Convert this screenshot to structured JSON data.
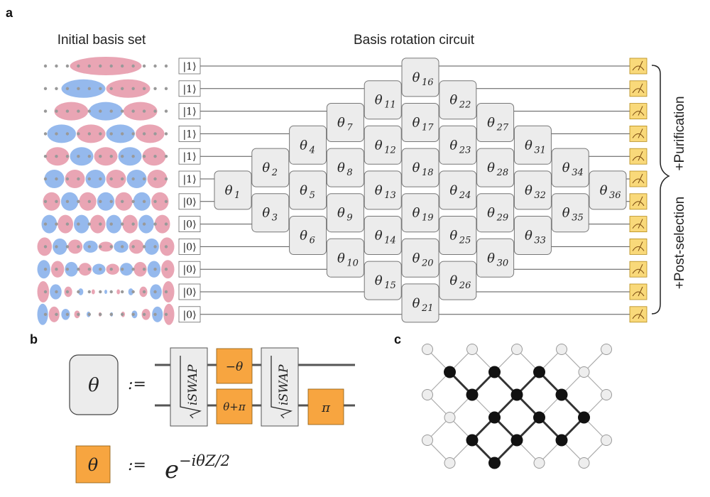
{
  "panel_labels": {
    "a": "a",
    "b": "b",
    "c": "c"
  },
  "panel_a": {
    "left_title": "Initial basis set",
    "right_title": "Basis rotation circuit",
    "initial_states": [
      "|1⟩",
      "|1⟩",
      "|1⟩",
      "|1⟩",
      "|1⟩",
      "|1⟩",
      "|0⟩",
      "|0⟩",
      "|0⟩",
      "|0⟩",
      "|0⟩",
      "|0⟩"
    ],
    "gates": [
      {
        "sym": "θ",
        "sub": "1",
        "col": 0,
        "pair": 5
      },
      {
        "sym": "θ",
        "sub": "2",
        "col": 1,
        "pair": 4
      },
      {
        "sym": "θ",
        "sub": "3",
        "col": 1,
        "pair": 6
      },
      {
        "sym": "θ",
        "sub": "4",
        "col": 2,
        "pair": 3
      },
      {
        "sym": "θ",
        "sub": "5",
        "col": 2,
        "pair": 5
      },
      {
        "sym": "θ",
        "sub": "6",
        "col": 2,
        "pair": 7
      },
      {
        "sym": "θ",
        "sub": "7",
        "col": 3,
        "pair": 2
      },
      {
        "sym": "θ",
        "sub": "8",
        "col": 3,
        "pair": 4
      },
      {
        "sym": "θ",
        "sub": "9",
        "col": 3,
        "pair": 6
      },
      {
        "sym": "θ",
        "sub": "10",
        "col": 3,
        "pair": 8
      },
      {
        "sym": "θ",
        "sub": "11",
        "col": 4,
        "pair": 1
      },
      {
        "sym": "θ",
        "sub": "12",
        "col": 4,
        "pair": 3
      },
      {
        "sym": "θ",
        "sub": "13",
        "col": 4,
        "pair": 5
      },
      {
        "sym": "θ",
        "sub": "14",
        "col": 4,
        "pair": 7
      },
      {
        "sym": "θ",
        "sub": "15",
        "col": 4,
        "pair": 9
      },
      {
        "sym": "θ",
        "sub": "16",
        "col": 5,
        "pair": 0
      },
      {
        "sym": "θ",
        "sub": "17",
        "col": 5,
        "pair": 2
      },
      {
        "sym": "θ",
        "sub": "18",
        "col": 5,
        "pair": 4
      },
      {
        "sym": "θ",
        "sub": "19",
        "col": 5,
        "pair": 6
      },
      {
        "sym": "θ",
        "sub": "20",
        "col": 5,
        "pair": 8
      },
      {
        "sym": "θ",
        "sub": "21",
        "col": 5,
        "pair": 10
      },
      {
        "sym": "θ",
        "sub": "22",
        "col": 6,
        "pair": 1
      },
      {
        "sym": "θ",
        "sub": "23",
        "col": 6,
        "pair": 3
      },
      {
        "sym": "θ",
        "sub": "24",
        "col": 6,
        "pair": 5
      },
      {
        "sym": "θ",
        "sub": "25",
        "col": 6,
        "pair": 7
      },
      {
        "sym": "θ",
        "sub": "26",
        "col": 6,
        "pair": 9
      },
      {
        "sym": "θ",
        "sub": "27",
        "col": 7,
        "pair": 2
      },
      {
        "sym": "θ",
        "sub": "28",
        "col": 7,
        "pair": 4
      },
      {
        "sym": "θ",
        "sub": "29",
        "col": 7,
        "pair": 6
      },
      {
        "sym": "θ",
        "sub": "30",
        "col": 7,
        "pair": 8
      },
      {
        "sym": "θ",
        "sub": "31",
        "col": 8,
        "pair": 3
      },
      {
        "sym": "θ",
        "sub": "32",
        "col": 8,
        "pair": 5
      },
      {
        "sym": "θ",
        "sub": "33",
        "col": 8,
        "pair": 7
      },
      {
        "sym": "θ",
        "sub": "34",
        "col": 9,
        "pair": 4
      },
      {
        "sym": "θ",
        "sub": "35",
        "col": 9,
        "pair": 6
      },
      {
        "sym": "θ",
        "sub": "36",
        "col": 10,
        "pair": 5
      }
    ],
    "brace_top_label": "+Purification",
    "brace_bottom_label": "+Post-selection"
  },
  "panel_b": {
    "gate_symbol": "θ",
    "defined_as": ":=",
    "sqrt_iswap_label": "iSWAP",
    "minus_theta_label": "−θ",
    "theta_plus_pi_label": "θ+π",
    "pi_label": "π",
    "phase_symbol": "θ",
    "phase_defined_as": ":=",
    "phase_base": "e",
    "phase_exponent": "−iθZ/2"
  },
  "panel_c": {
    "lattice": "diamond grid with highlighted zigzag path"
  },
  "colors": {
    "pink": "#e8a0b0",
    "blue": "#8fb5ec",
    "dot": "#999999",
    "orange": "#f7a540",
    "measure_fill": "#f9d97a",
    "gate_fill": "#ececec"
  }
}
